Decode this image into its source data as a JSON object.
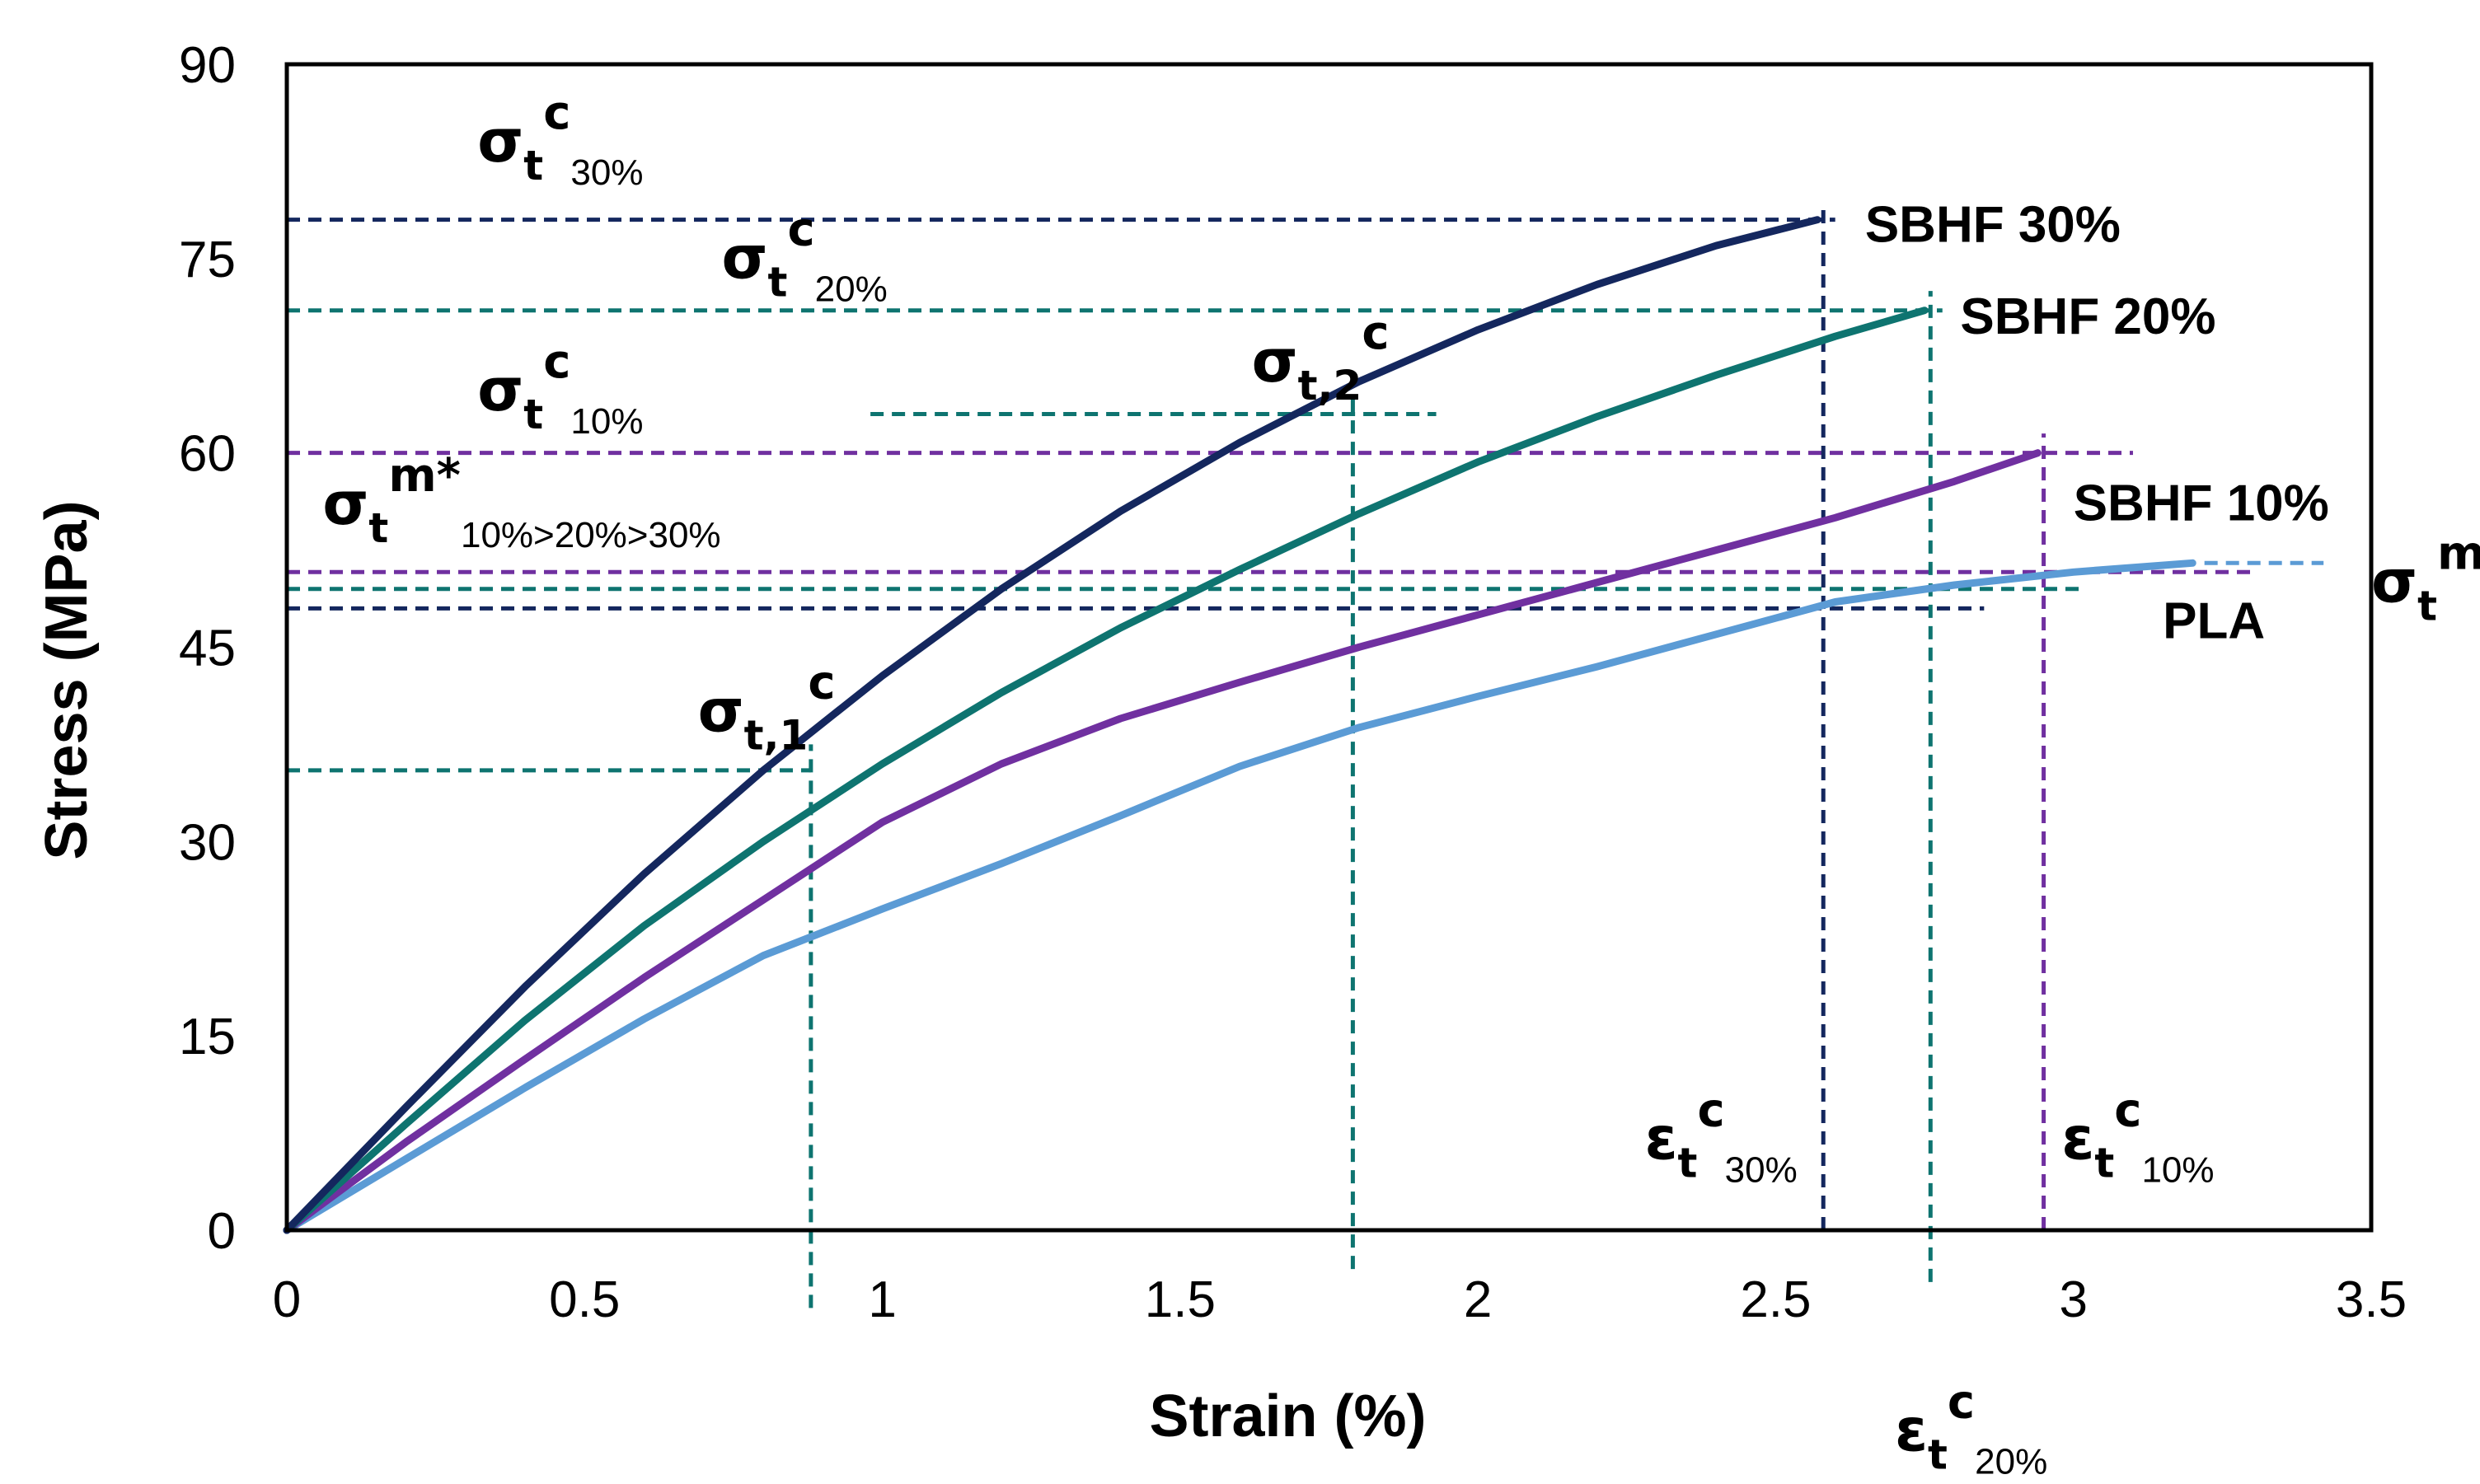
{
  "chart_data": {
    "type": "line",
    "xlabel": "Strain (%)",
    "ylabel": "Stress (MPa)",
    "xlim": [
      0,
      3.5
    ],
    "ylim": [
      0,
      90
    ],
    "xticks": [
      "0",
      "0.5",
      "1",
      "1.5",
      "2",
      "2.5",
      "3",
      "3.5"
    ],
    "yticks": [
      "0",
      "15",
      "30",
      "45",
      "60",
      "75",
      "90"
    ],
    "grid": false,
    "colors": {
      "sbhf30": "#14275e",
      "sbhf20": "#0e7470",
      "sbhf10": "#7030a0",
      "pla": "#5b9bd5"
    },
    "series": [
      {
        "name": "SBHF 30%",
        "x": [
          0,
          0.2,
          0.4,
          0.6,
          0.8,
          1.0,
          1.2,
          1.4,
          1.6,
          1.8,
          2.0,
          2.2,
          2.4,
          2.57
        ],
        "y": [
          0,
          9.5,
          18.8,
          27.5,
          35.5,
          42.8,
          49.5,
          55.5,
          60.8,
          65.5,
          69.5,
          73.0,
          76.0,
          78.0
        ]
      },
      {
        "name": "SBHF 20%",
        "x": [
          0,
          0.2,
          0.4,
          0.6,
          0.8,
          1.0,
          1.2,
          1.4,
          1.6,
          1.8,
          2.0,
          2.2,
          2.4,
          2.6,
          2.75
        ],
        "y": [
          0,
          8.2,
          16.2,
          23.5,
          30.0,
          36.0,
          41.5,
          46.5,
          51.0,
          55.3,
          59.3,
          62.8,
          66.0,
          69.0,
          71.0
        ]
      },
      {
        "name": "SBHF 10%",
        "x": [
          0,
          0.2,
          0.4,
          0.6,
          0.8,
          1.0,
          1.2,
          1.4,
          1.6,
          1.8,
          2.0,
          2.2,
          2.4,
          2.6,
          2.8,
          2.94
        ],
        "y": [
          0,
          6.8,
          13.2,
          19.5,
          25.5,
          31.5,
          36.0,
          39.5,
          42.3,
          45.0,
          47.5,
          50.0,
          52.5,
          55.0,
          57.8,
          60.0
        ]
      },
      {
        "name": "PLA",
        "x": [
          0,
          0.2,
          0.4,
          0.6,
          0.8,
          1.0,
          1.2,
          1.4,
          1.6,
          1.8,
          2.0,
          2.2,
          2.4,
          2.6,
          2.8,
          3.0,
          3.2
        ],
        "y": [
          0,
          5.5,
          11.0,
          16.3,
          21.2,
          24.8,
          28.3,
          32.0,
          35.8,
          38.8,
          41.2,
          43.5,
          46.0,
          48.5,
          49.8,
          50.8,
          51.5
        ]
      }
    ],
    "reference_lines": [
      {
        "orient": "h",
        "value": 78,
        "from": 0,
        "to": 2.6,
        "color": "#14275e"
      },
      {
        "orient": "h",
        "value": 71,
        "from": 0,
        "to": 2.78,
        "color": "#0e7470"
      },
      {
        "orient": "h",
        "value": 60,
        "from": 0,
        "to": 3.1,
        "color": "#7030a0"
      },
      {
        "orient": "h",
        "value": 63,
        "from": 0.98,
        "to": 1.93,
        "color": "#0e7470"
      },
      {
        "orient": "h",
        "value": 35.5,
        "from": 0,
        "to": 0.88,
        "color": "#0e7470"
      },
      {
        "orient": "h",
        "value": 50.8,
        "from": 0,
        "to": 3.3,
        "color": "#7030a0"
      },
      {
        "orient": "h",
        "value": 49.5,
        "from": 0,
        "to": 3.02,
        "color": "#0e7470"
      },
      {
        "orient": "h",
        "value": 48,
        "from": 0,
        "to": 2.85,
        "color": "#14275e"
      },
      {
        "orient": "h",
        "value": 51.5,
        "from": 3.22,
        "to": 3.42,
        "color": "#5b9bd5"
      },
      {
        "orient": "v",
        "value": 0.88,
        "from": -6,
        "to": 37.5,
        "color": "#0e7470"
      },
      {
        "orient": "v",
        "value": 1.79,
        "from": -3,
        "to": 64.5,
        "color": "#0e7470"
      },
      {
        "orient": "v",
        "value": 2.58,
        "from": 0,
        "to": 79,
        "color": "#14275e"
      },
      {
        "orient": "v",
        "value": 2.76,
        "from": -4,
        "to": 72.5,
        "color": "#0e7470"
      },
      {
        "orient": "v",
        "value": 2.95,
        "from": 0,
        "to": 61.5,
        "color": "#7030a0"
      }
    ],
    "annotations": [
      {
        "id": "sigma-t-c-30",
        "base": "σ",
        "sub1": "t",
        "sup": "c",
        "sub2": "30%",
        "x": 0.32,
        "y": 82.5
      },
      {
        "id": "sigma-t-c-20",
        "base": "σ",
        "sub1": "t",
        "sup": "c",
        "sub2": "20%",
        "x": 0.73,
        "y": 73.5
      },
      {
        "id": "sigma-t-c-10",
        "base": "σ",
        "sub1": "t",
        "sup": "c",
        "sub2": "10%",
        "x": 0.32,
        "y": 63.3
      },
      {
        "id": "sigma-t-m-star",
        "base": "σ",
        "sub1": "t",
        "sup": "m*",
        "sub2": "10%>20%>30%",
        "x": 0.06,
        "y": 54.5
      },
      {
        "id": "sigma-t2-c",
        "base": "σ",
        "sub1": "t,2",
        "sup": "c",
        "sub2": "",
        "x": 1.62,
        "y": 65.5
      },
      {
        "id": "sigma-t1-c",
        "base": "σ",
        "sub1": "t,1",
        "sup": "c",
        "sub2": "",
        "x": 0.69,
        "y": 38.5
      },
      {
        "id": "sigma-t-m",
        "base": "σ",
        "sub1": "t",
        "sup": "m",
        "sub2": "",
        "x": 3.5,
        "y": 48.5
      },
      {
        "id": "eps-t-c-30",
        "base": "ε",
        "sub1": "t",
        "sup": "c",
        "sub2": "30%",
        "x": 2.28,
        "y": 5.5
      },
      {
        "id": "eps-t-c-10",
        "base": "ε",
        "sub1": "t",
        "sup": "c",
        "sub2": "10%",
        "x": 2.98,
        "y": 5.5
      },
      {
        "id": "eps-t-c-20",
        "base": "ε",
        "sub1": "t",
        "sup": "c",
        "sub2": "20%",
        "x": 2.7,
        "y": -17
      }
    ],
    "series_labels": [
      {
        "text": "SBHF 30%",
        "x": 2.65,
        "y": 76.3
      },
      {
        "text": "SBHF 20%",
        "x": 2.81,
        "y": 69.2
      },
      {
        "text": "SBHF 10%",
        "x": 3.0,
        "y": 54.8
      },
      {
        "text": "PLA",
        "x": 3.15,
        "y": 45.7
      }
    ]
  }
}
